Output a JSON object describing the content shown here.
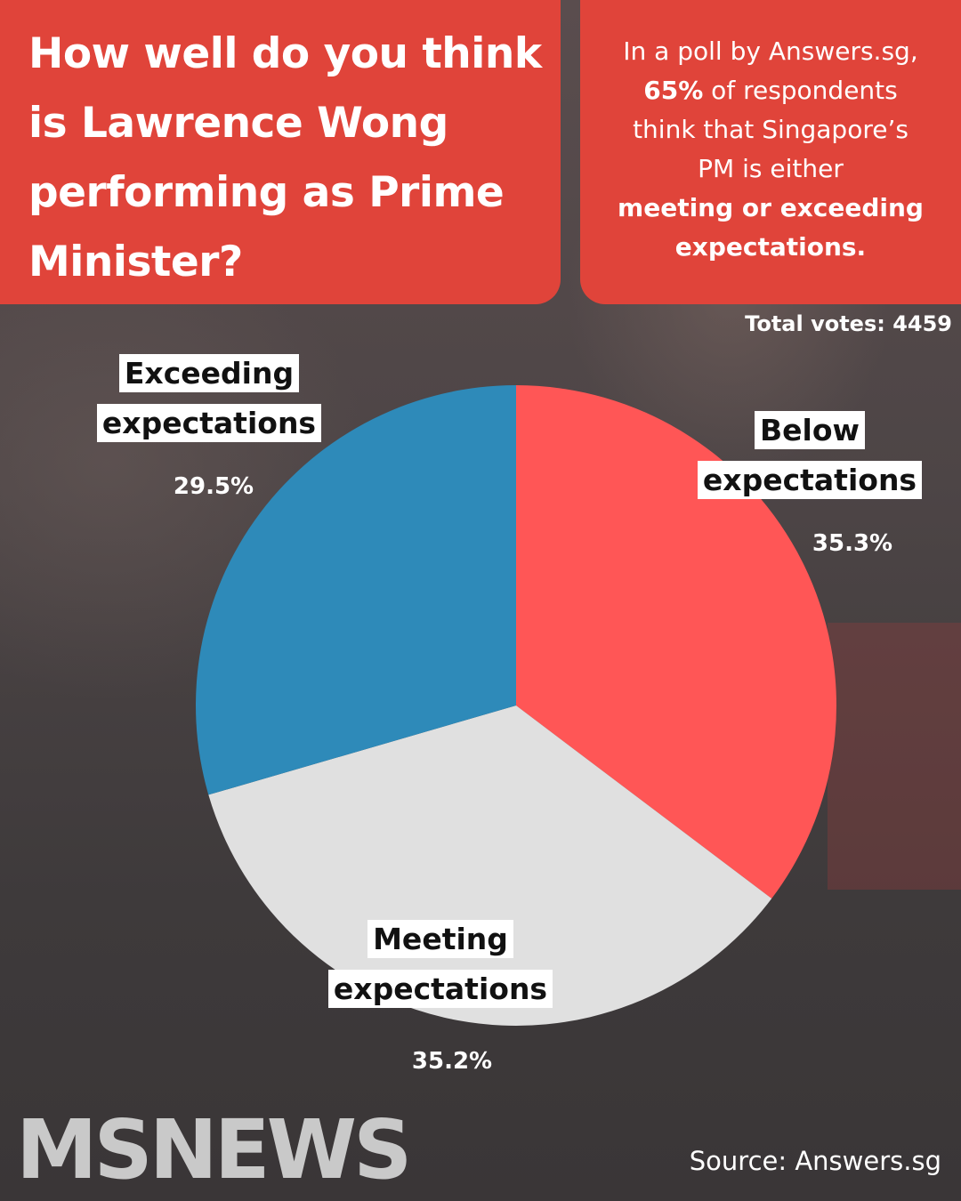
{
  "title": "How well do you think is Lawrence Wong performing as Prime Minister?",
  "info": {
    "line1": "In a poll by Answers.sg,",
    "highlight_pct": "65%",
    "line2_rest": " of respondents",
    "line3": "think that Singapore’s",
    "line4": "PM is either",
    "bold1": "meeting or exceeding",
    "bold2": "expectations."
  },
  "total_votes_label": "Total votes: 4459",
  "brand": "MSNEWS",
  "source": "Source: Answers.sg",
  "colors": {
    "banner": "#e0443a",
    "below": "#ff5656",
    "meeting": "#e0e0e0",
    "exceeding": "#2e8ab9"
  },
  "chart_data": {
    "type": "pie",
    "total_votes": 4459,
    "slices": [
      {
        "label": "Below expectations",
        "value": 35.3,
        "value_label": "35.3%",
        "color": "#ff5656"
      },
      {
        "label": "Meeting expectations",
        "value": 35.2,
        "value_label": "35.2%",
        "color": "#e0e0e0"
      },
      {
        "label": "Exceeding expectations",
        "value": 29.5,
        "value_label": "29.5%",
        "color": "#2e8ab9"
      }
    ]
  }
}
